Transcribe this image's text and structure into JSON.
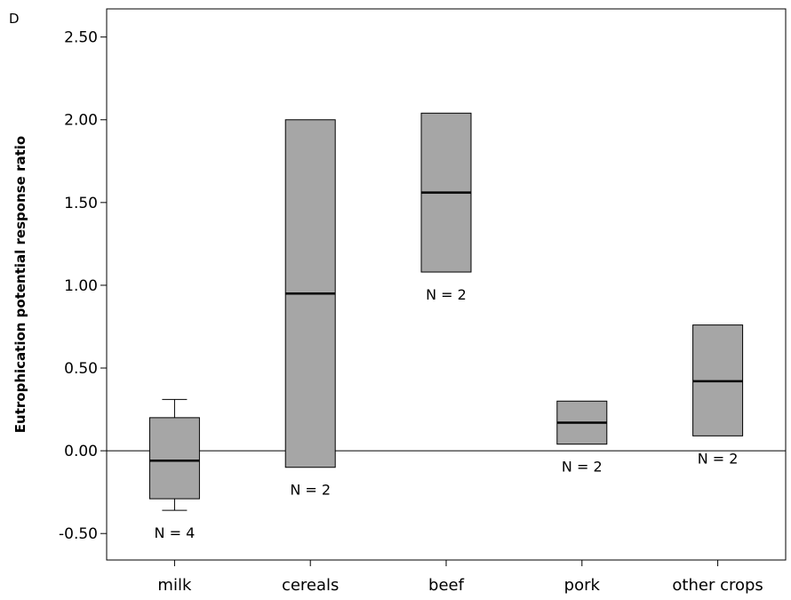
{
  "panel_letter": "D",
  "chart_data": {
    "type": "boxplot",
    "title": "",
    "xlabel": "",
    "ylabel": "Eutrophication potential response ratio",
    "ylim": [
      -0.66,
      2.67
    ],
    "yticks": [
      -0.5,
      0.0,
      0.5,
      1.0,
      1.5,
      2.0,
      2.5
    ],
    "ytick_labels": [
      "-0.50",
      "0.00",
      "0.50",
      "1.00",
      "1.50",
      "2.00",
      "2.50"
    ],
    "reference_line": 0.0,
    "grid": false,
    "box_color": "#a6a6a6",
    "categories": [
      "milk",
      "cereals",
      "beef",
      "pork",
      "other crops"
    ],
    "boxes": [
      {
        "category": "milk",
        "whisker_low": -0.36,
        "q1": -0.29,
        "median": -0.06,
        "q3": 0.2,
        "whisker_high": 0.31,
        "n_label": "N = 4"
      },
      {
        "category": "cereals",
        "whisker_low": -0.1,
        "q1": -0.1,
        "median": 0.95,
        "q3": 2.0,
        "whisker_high": 2.0,
        "n_label": "N = 2"
      },
      {
        "category": "beef",
        "whisker_low": 1.08,
        "q1": 1.08,
        "median": 1.56,
        "q3": 2.04,
        "whisker_high": 2.04,
        "n_label": "N = 2"
      },
      {
        "category": "pork",
        "whisker_low": 0.04,
        "q1": 0.04,
        "median": 0.17,
        "q3": 0.3,
        "whisker_high": 0.3,
        "n_label": "N = 2"
      },
      {
        "category": "other crops",
        "whisker_low": 0.09,
        "q1": 0.09,
        "median": 0.42,
        "q3": 0.76,
        "whisker_high": 0.76,
        "n_label": "N = 2"
      }
    ]
  }
}
